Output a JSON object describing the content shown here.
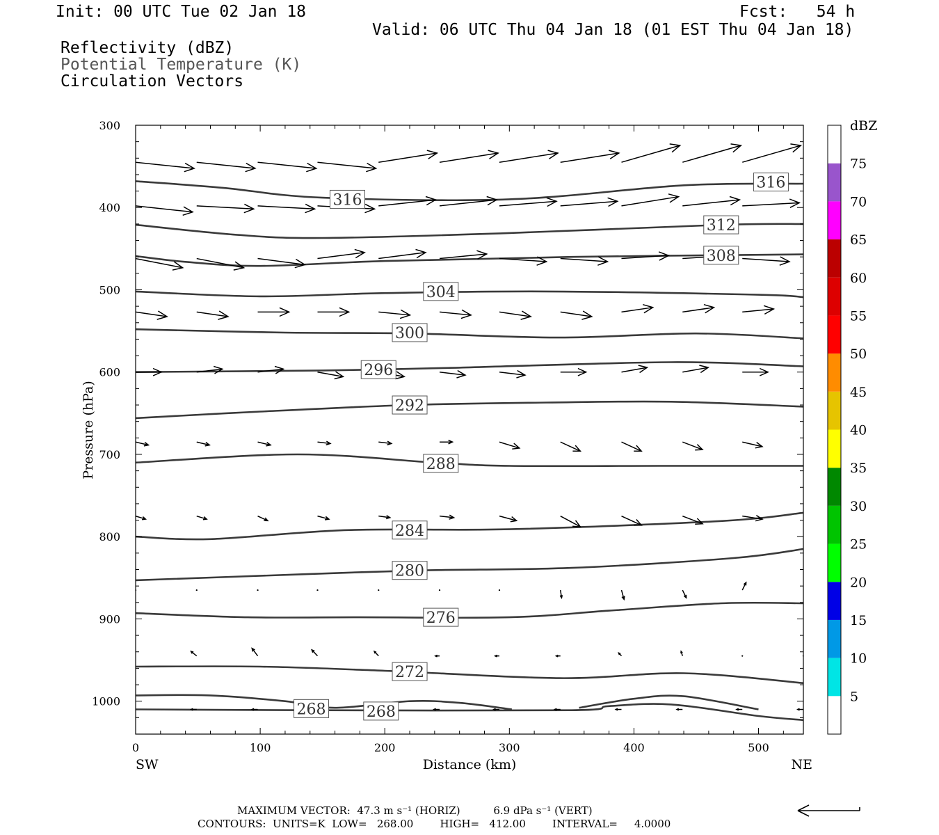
{
  "header": {
    "init": "Init: 00 UTC Tue 02 Jan 18",
    "fcst": "Fcst:   54 h",
    "valid": "Valid: 06 UTC Thu 04 Jan 18 (01 EST Thu 04 Jan 18)",
    "fields": [
      "Reflectivity (dBZ)",
      "Potential Temperature (K)",
      "Circulation Vectors"
    ],
    "field_colors": [
      "#000000",
      "#555555",
      "#000000"
    ]
  },
  "footer": {
    "line1": "MAXIMUM VECTOR:  47.3 m s⁻¹ (HORIZ)          6.9 dPa s⁻¹ (VERT)",
    "line2": "CONTOURS:  UNITS=K  LOW=   268.00        HIGH=   412.00        INTERVAL=     4.0000"
  },
  "chart_data": {
    "type": "contour",
    "xlabel": "Distance (km)",
    "ylabel": "Pressure (hPa)",
    "xlim": [
      0,
      536
    ],
    "ylim": [
      1040,
      300
    ],
    "x_ticks": [
      0,
      100,
      200,
      300,
      400,
      500
    ],
    "y_ticks": [
      300,
      400,
      500,
      600,
      700,
      800,
      900,
      1000
    ],
    "x_end_labels": {
      "left": "SW",
      "right": "NE"
    },
    "contour_color": "#3a3a3a",
    "contours": [
      {
        "value": 316,
        "label": "316",
        "points": [
          [
            0,
            368
          ],
          [
            70,
            376
          ],
          [
            150,
            388
          ],
          [
            300,
            390
          ],
          [
            440,
            373
          ],
          [
            536,
            371
          ]
        ],
        "labels_at": [
          [
            170,
            390
          ],
          [
            510,
            369
          ]
        ]
      },
      {
        "value": 312,
        "label": "312",
        "points": [
          [
            0,
            421
          ],
          [
            80,
            433
          ],
          [
            150,
            437
          ],
          [
            300,
            431
          ],
          [
            470,
            421
          ],
          [
            536,
            420
          ]
        ],
        "labels_at": [
          [
            470,
            421
          ]
        ]
      },
      {
        "value": 308,
        "label": "308",
        "points": [
          [
            0,
            459
          ],
          [
            40,
            466
          ],
          [
            100,
            471
          ],
          [
            200,
            465
          ],
          [
            350,
            460
          ],
          [
            536,
            457
          ]
        ],
        "labels_at": [
          [
            470,
            458
          ]
        ]
      },
      {
        "value": 304,
        "label": "304",
        "points": [
          [
            0,
            502
          ],
          [
            100,
            508
          ],
          [
            200,
            504
          ],
          [
            330,
            502
          ],
          [
            500,
            506
          ],
          [
            536,
            509
          ]
        ],
        "labels_at": [
          [
            245,
            502
          ]
        ]
      },
      {
        "value": 300,
        "label": "300",
        "points": [
          [
            0,
            548
          ],
          [
            120,
            552
          ],
          [
            220,
            553
          ],
          [
            340,
            558
          ],
          [
            450,
            553
          ],
          [
            536,
            559
          ]
        ],
        "labels_at": [
          [
            220,
            552
          ]
        ]
      },
      {
        "value": 296,
        "label": "296",
        "points": [
          [
            0,
            600
          ],
          [
            150,
            598
          ],
          [
            250,
            595
          ],
          [
            430,
            588
          ],
          [
            536,
            593
          ]
        ],
        "labels_at": [
          [
            195,
            597
          ]
        ]
      },
      {
        "value": 292,
        "label": "292",
        "points": [
          [
            0,
            656
          ],
          [
            100,
            648
          ],
          [
            220,
            640
          ],
          [
            330,
            637
          ],
          [
            430,
            636
          ],
          [
            536,
            642
          ]
        ],
        "labels_at": [
          [
            220,
            640
          ]
        ]
      },
      {
        "value": 288,
        "label": "288",
        "points": [
          [
            0,
            710
          ],
          [
            130,
            700
          ],
          [
            240,
            710
          ],
          [
            300,
            714
          ],
          [
            420,
            714
          ],
          [
            536,
            714
          ]
        ],
        "labels_at": [
          [
            245,
            711
          ]
        ]
      },
      {
        "value": 284,
        "label": "284",
        "points": [
          [
            0,
            800
          ],
          [
            60,
            803
          ],
          [
            170,
            792
          ],
          [
            300,
            791
          ],
          [
            470,
            781
          ],
          [
            536,
            771
          ]
        ],
        "labels_at": [
          [
            220,
            792
          ]
        ]
      },
      {
        "value": 280,
        "label": "280",
        "points": [
          [
            0,
            853
          ],
          [
            130,
            846
          ],
          [
            230,
            841
          ],
          [
            350,
            838
          ],
          [
            480,
            826
          ],
          [
            536,
            815
          ]
        ],
        "labels_at": [
          [
            220,
            841
          ]
        ]
      },
      {
        "value": 276,
        "label": "276",
        "points": [
          [
            0,
            893
          ],
          [
            90,
            898
          ],
          [
            180,
            898
          ],
          [
            300,
            898
          ],
          [
            380,
            890
          ],
          [
            470,
            881
          ],
          [
            536,
            881
          ]
        ],
        "labels_at": [
          [
            245,
            898
          ]
        ]
      },
      {
        "value": 272,
        "label": "272",
        "points": [
          [
            0,
            958
          ],
          [
            100,
            958
          ],
          [
            200,
            963
          ],
          [
            340,
            972
          ],
          [
            440,
            966
          ],
          [
            536,
            978
          ]
        ],
        "labels_at": [
          [
            220,
            964
          ]
        ]
      },
      {
        "value": 268,
        "label": "268",
        "points": [
          [
            0,
            993
          ],
          [
            60,
            993
          ],
          [
            120,
            1000
          ],
          [
            160,
            1008
          ],
          [
            220,
            1000
          ],
          [
            260,
            1002
          ],
          [
            302,
            1010
          ]
        ],
        "labels_at": [
          [
            141,
            1009
          ],
          [
            197,
            1012
          ]
        ]
      },
      {
        "value": 268,
        "label": "",
        "points": [
          [
            356,
            1008
          ],
          [
            400,
            997
          ],
          [
            440,
            994
          ],
          [
            500,
            1010
          ]
        ],
        "labels_at": []
      },
      {
        "value": 268,
        "label": "",
        "points": [
          [
            0,
            1010
          ],
          [
            150,
            1011
          ],
          [
            350,
            1011
          ],
          [
            380,
            1006
          ],
          [
            430,
            1004
          ],
          [
            500,
            1018
          ],
          [
            536,
            1023
          ]
        ],
        "labels_at": []
      }
    ],
    "vectors": {
      "x": [
        0,
        49,
        98,
        146,
        195,
        244,
        292,
        341,
        390,
        439,
        487,
        536
      ],
      "rows": [
        {
          "p": 345,
          "u": [
            41,
            41,
            41,
            41,
            41,
            41,
            41,
            41,
            41,
            41,
            41,
            41
          ],
          "w": [
            -0.4,
            -0.4,
            -0.4,
            -0.4,
            0.6,
            0.6,
            0.6,
            0.6,
            1.1,
            1.1,
            1.1,
            1.3
          ]
        },
        {
          "p": 398,
          "u": [
            40,
            40,
            40,
            40,
            40,
            40,
            40,
            40,
            40,
            40,
            40,
            40
          ],
          "w": [
            -0.4,
            -0.2,
            -0.2,
            -0.2,
            0.4,
            0.4,
            0.3,
            0.3,
            0.6,
            0.4,
            0.2,
            0.2
          ]
        },
        {
          "p": 462,
          "u": [
            33,
            33,
            33,
            33,
            33,
            33,
            33,
            33,
            33,
            33,
            33,
            33
          ],
          "w": [
            -0.6,
            -0.6,
            -0.4,
            0.4,
            0.4,
            0.3,
            -0.2,
            -0.2,
            0.2,
            0.2,
            -0.2,
            -0.2
          ]
        },
        {
          "p": 527,
          "u": [
            22,
            22,
            22,
            22,
            22,
            22,
            22,
            22,
            22,
            22,
            22,
            22
          ],
          "w": [
            -0.3,
            -0.3,
            0,
            0,
            -0.2,
            -0.2,
            -0.3,
            -0.3,
            0.3,
            0.3,
            0.2,
            0.2
          ]
        },
        {
          "p": 600,
          "u": [
            18,
            18,
            18,
            18,
            18,
            18,
            18,
            18,
            18,
            18,
            18,
            18
          ],
          "w": [
            0,
            0.2,
            0.2,
            -0.3,
            -0.3,
            -0.2,
            -0.2,
            0,
            0.3,
            0.3,
            0,
            0
          ]
        },
        {
          "p": 685,
          "u": [
            9,
            9,
            9,
            9,
            9,
            9,
            14,
            14,
            14,
            14,
            14,
            14
          ],
          "w": [
            -0.2,
            -0.2,
            -0.2,
            -0.1,
            -0.1,
            0,
            -0.4,
            -0.6,
            -0.6,
            -0.5,
            -0.3,
            -0.3
          ]
        },
        {
          "p": 775,
          "u": [
            7,
            7,
            7,
            8,
            8,
            10,
            12,
            14,
            14,
            14,
            14,
            14
          ],
          "w": [
            -0.2,
            -0.2,
            -0.3,
            -0.2,
            -0.1,
            -0.1,
            -0.3,
            -0.7,
            -0.6,
            -0.5,
            -0.2,
            -0.2
          ]
        },
        {
          "p": 865,
          "u": [
            0,
            0,
            0,
            0,
            0,
            0,
            0,
            0.8,
            1.8,
            2.6,
            2.6,
            2.6
          ],
          "w": [
            0,
            0,
            0,
            0,
            0,
            0,
            0,
            -0.5,
            -0.6,
            -0.5,
            0.5,
            0.5
          ]
        },
        {
          "p": 945,
          "u": [
            -4,
            -4,
            -4,
            -4,
            -3,
            -3,
            -3,
            -3,
            -2,
            -1,
            0,
            0
          ],
          "w": [
            0.1,
            0.3,
            0.5,
            0.4,
            0.3,
            0,
            0,
            0,
            0.2,
            0.3,
            0,
            0
          ]
        },
        {
          "p": 1010,
          "u": [
            -4,
            -4,
            -4,
            -4,
            -4,
            -4,
            -4,
            -4,
            -4,
            -4,
            -4,
            -4
          ],
          "w": [
            0,
            0,
            0,
            0,
            0,
            0,
            0,
            0,
            0,
            0,
            0,
            0
          ]
        }
      ]
    },
    "reflectivity_scale": {
      "title": "dBZ",
      "ticks": [
        "5",
        "10",
        "15",
        "20",
        "25",
        "30",
        "35",
        "40",
        "45",
        "50",
        "55",
        "60",
        "65",
        "70",
        "75"
      ],
      "colors": [
        "#ffffff",
        "#00e5e5",
        "#0099e6",
        "#0000e6",
        "#00ff00",
        "#00c400",
        "#008800",
        "#ffff00",
        "#e6c400",
        "#ff8c00",
        "#ff0000",
        "#dd0000",
        "#bb0000",
        "#ff00ff",
        "#9955cc",
        "#ffffff"
      ]
    },
    "reference_arrow": "left",
    "grid": false,
    "legend": "right"
  }
}
